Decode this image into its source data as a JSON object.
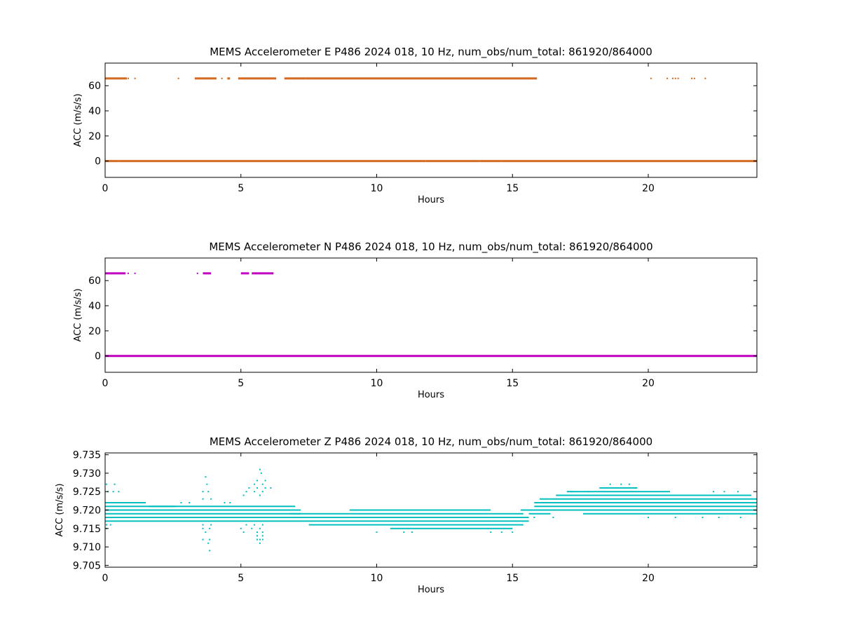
{
  "chart_data": [
    {
      "type": "scatter",
      "title": "MEMS Accelerometer E P486 2024 018, 10 Hz, num_obs/num_total: 861920/864000",
      "xlabel": "Hours",
      "ylabel": "ACC (m/s/s)",
      "xlim": [
        0,
        24
      ],
      "ylim": [
        -13,
        78
      ],
      "xticks": [
        0,
        5,
        10,
        15,
        20
      ],
      "yticks": [
        0,
        20,
        40,
        60
      ],
      "ytick_labels": [
        "0",
        "20",
        "40",
        "60"
      ],
      "color": "#d2691e",
      "grid": false,
      "series": [
        {
          "values": [
            [
              0.0,
              0.5,
              0.0
            ],
            [
              0.5,
              11.8,
              0.0
            ],
            [
              11.8,
              13.8,
              0.0
            ],
            [
              13.8,
              14.6,
              0.0
            ],
            [
              14.6,
              15.2,
              0.0
            ],
            [
              15.2,
              24.0,
              0.0
            ],
            [
              0.0,
              0.8,
              65.8
            ],
            [
              3.3,
              4.1,
              65.8
            ],
            [
              4.5,
              4.6,
              65.8
            ],
            [
              4.9,
              6.3,
              65.8
            ],
            [
              6.6,
              7.4,
              65.8
            ],
            [
              7.4,
              15.9,
              65.8
            ]
          ],
          "points": [
            [
              0.85,
              65.8
            ],
            [
              1.1,
              65.8
            ],
            [
              2.7,
              65.8
            ],
            [
              4.3,
              65.8
            ],
            [
              20.1,
              65.8
            ],
            [
              20.7,
              65.8
            ],
            [
              20.9,
              65.8
            ],
            [
              21.0,
              65.8
            ],
            [
              21.1,
              65.8
            ],
            [
              21.6,
              65.8
            ],
            [
              21.7,
              65.8
            ],
            [
              22.1,
              65.8
            ]
          ]
        }
      ]
    },
    {
      "type": "scatter",
      "title": "MEMS Accelerometer N P486 2024 018, 10 Hz, num_obs/num_total: 861920/864000",
      "xlabel": "Hours",
      "ylabel": "ACC (m/s/s)",
      "xlim": [
        0,
        24
      ],
      "ylim": [
        -13,
        78
      ],
      "xticks": [
        0,
        5,
        10,
        15,
        20
      ],
      "yticks": [
        0,
        20,
        40,
        60
      ],
      "ytick_labels": [
        "0",
        "20",
        "40",
        "60"
      ],
      "color": "#bf00bf",
      "grid": false,
      "series": [
        {
          "values": [
            [
              0.0,
              24.0,
              0.0
            ],
            [
              0.0,
              0.75,
              65.8
            ],
            [
              3.6,
              3.9,
              65.8
            ],
            [
              5.0,
              5.3,
              65.8
            ],
            [
              5.4,
              6.2,
              65.8
            ]
          ],
          "points": [
            [
              0.85,
              65.8
            ],
            [
              1.1,
              65.8
            ],
            [
              3.4,
              65.8
            ]
          ]
        }
      ]
    },
    {
      "type": "scatter",
      "title": "MEMS Accelerometer Z P486 2024 018, 10 Hz, num_obs/num_total: 861920/864000",
      "xlabel": "Hours",
      "ylabel": "ACC (m/s/s)",
      "xlim": [
        0,
        24
      ],
      "ylim": [
        9.7045,
        9.7355
      ],
      "xticks": [
        0,
        5,
        10,
        15,
        20
      ],
      "yticks": [
        9.705,
        9.71,
        9.715,
        9.72,
        9.725,
        9.73,
        9.735
      ],
      "ytick_labels": [
        "9.705",
        "9.710",
        "9.715",
        "9.720",
        "9.725",
        "9.730",
        "9.735"
      ],
      "color": "#00bfbf",
      "grid": false,
      "series": [
        {
          "values": [
            [
              0.0,
              7.2,
              9.717
            ],
            [
              0.0,
              7.2,
              9.718
            ],
            [
              0.0,
              7.2,
              9.719
            ],
            [
              0.0,
              7.2,
              9.72
            ],
            [
              0.0,
              7.0,
              9.721
            ],
            [
              0.0,
              1.5,
              9.722
            ],
            [
              1.6,
              2.6,
              9.721
            ],
            [
              6.8,
              15.4,
              9.719
            ],
            [
              7.0,
              15.6,
              9.718
            ],
            [
              7.2,
              15.6,
              9.717
            ],
            [
              7.5,
              15.4,
              9.716
            ],
            [
              10.5,
              15.0,
              9.715
            ],
            [
              9.0,
              14.2,
              9.72
            ],
            [
              15.3,
              16.8,
              9.72
            ],
            [
              15.6,
              16.4,
              9.719
            ],
            [
              15.8,
              24.0,
              9.721
            ],
            [
              15.8,
              24.0,
              9.722
            ],
            [
              16.0,
              24.0,
              9.723
            ],
            [
              16.6,
              23.8,
              9.724
            ],
            [
              17.0,
              20.8,
              9.725
            ],
            [
              18.2,
              19.6,
              9.726
            ],
            [
              16.8,
              24.0,
              9.72
            ],
            [
              17.6,
              24.0,
              9.719
            ]
          ],
          "points": [
            [
              0.05,
              9.727
            ],
            [
              0.35,
              9.727
            ],
            [
              0.1,
              9.725
            ],
            [
              0.3,
              9.725
            ],
            [
              0.5,
              9.725
            ],
            [
              0.05,
              9.716
            ],
            [
              0.2,
              9.716
            ],
            [
              0.05,
              9.715
            ],
            [
              3.7,
              9.729
            ],
            [
              3.75,
              9.727
            ],
            [
              3.6,
              9.725
            ],
            [
              3.8,
              9.725
            ],
            [
              3.6,
              9.723
            ],
            [
              3.9,
              9.723
            ],
            [
              3.6,
              9.716
            ],
            [
              3.9,
              9.716
            ],
            [
              3.6,
              9.715
            ],
            [
              3.85,
              9.715
            ],
            [
              3.7,
              9.714
            ],
            [
              3.6,
              9.712
            ],
            [
              3.85,
              9.712
            ],
            [
              3.8,
              9.711
            ],
            [
              3.85,
              9.709
            ],
            [
              5.7,
              9.731
            ],
            [
              5.75,
              9.73
            ],
            [
              5.6,
              9.728
            ],
            [
              5.9,
              9.728
            ],
            [
              5.5,
              9.727
            ],
            [
              5.8,
              9.727
            ],
            [
              5.3,
              9.726
            ],
            [
              5.6,
              9.726
            ],
            [
              5.9,
              9.726
            ],
            [
              6.1,
              9.726
            ],
            [
              5.2,
              9.725
            ],
            [
              5.5,
              9.725
            ],
            [
              5.8,
              9.725
            ],
            [
              5.1,
              9.724
            ],
            [
              5.7,
              9.724
            ],
            [
              5.2,
              9.716
            ],
            [
              5.5,
              9.716
            ],
            [
              5.8,
              9.716
            ],
            [
              5.0,
              9.715
            ],
            [
              5.4,
              9.715
            ],
            [
              5.7,
              9.715
            ],
            [
              5.1,
              9.714
            ],
            [
              5.6,
              9.714
            ],
            [
              5.8,
              9.714
            ],
            [
              5.6,
              9.713
            ],
            [
              5.8,
              9.713
            ],
            [
              5.6,
              9.712
            ],
            [
              5.7,
              9.712
            ],
            [
              5.8,
              9.712
            ],
            [
              5.7,
              9.711
            ],
            [
              2.8,
              9.722
            ],
            [
              3.1,
              9.722
            ],
            [
              4.4,
              9.722
            ],
            [
              4.6,
              9.722
            ],
            [
              10.0,
              9.714
            ],
            [
              11.0,
              9.714
            ],
            [
              11.3,
              9.714
            ],
            [
              14.2,
              9.714
            ],
            [
              14.6,
              9.714
            ],
            [
              15.0,
              9.714
            ],
            [
              17.2,
              9.725
            ],
            [
              17.8,
              9.725
            ],
            [
              22.4,
              9.725
            ],
            [
              22.8,
              9.725
            ],
            [
              23.3,
              9.725
            ],
            [
              20.0,
              9.718
            ],
            [
              21.0,
              9.718
            ],
            [
              22.0,
              9.718
            ],
            [
              22.6,
              9.718
            ],
            [
              23.4,
              9.718
            ],
            [
              16.5,
              9.718
            ],
            [
              15.8,
              9.718
            ],
            [
              18.6,
              9.727
            ],
            [
              19.3,
              9.727
            ],
            [
              19.0,
              9.727
            ]
          ]
        }
      ]
    }
  ]
}
